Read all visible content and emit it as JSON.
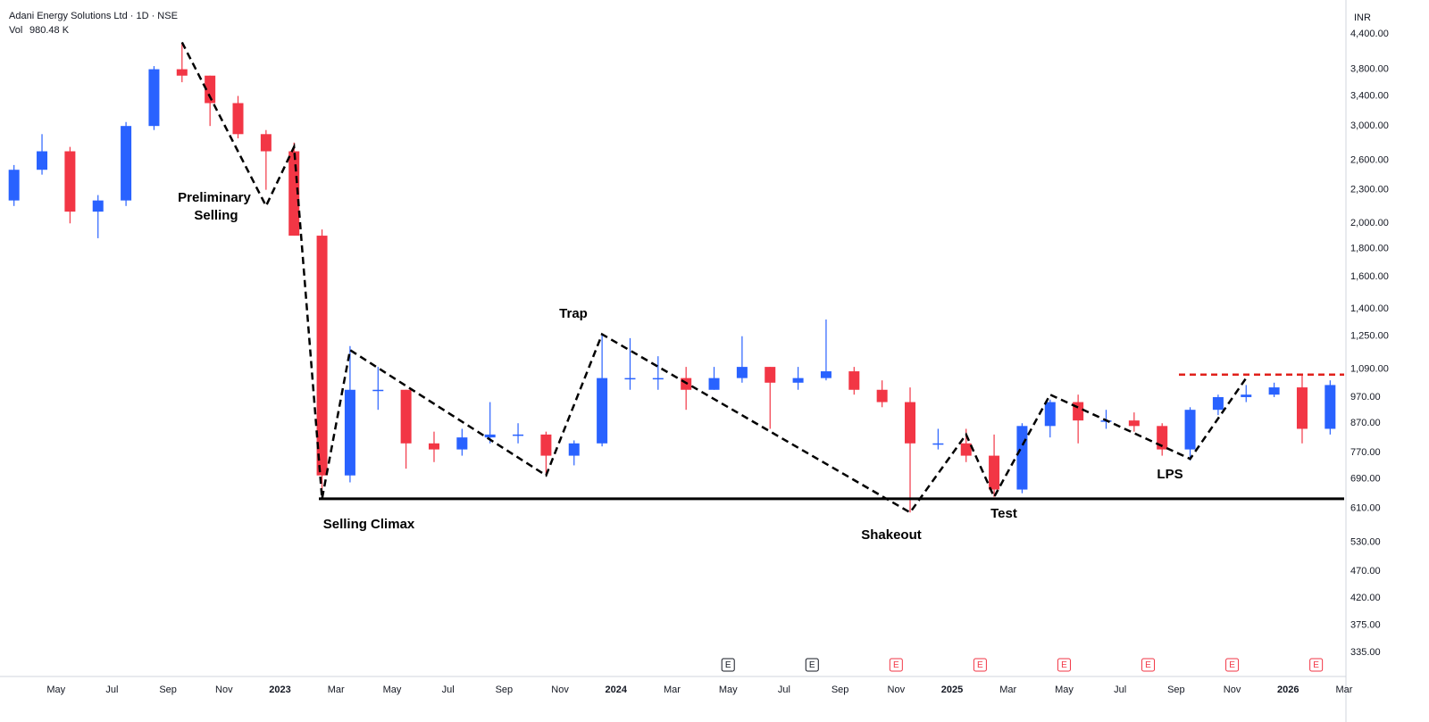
{
  "chart_data": {
    "type": "candlestick",
    "title": "Adani Energy Solutions Ltd · 1D · NSE",
    "volume_label": "Vol",
    "volume_value": "980.48 K",
    "currency": "INR",
    "log_scale": true,
    "grid": false,
    "up_color": "#2962ff",
    "down_color": "#f23645",
    "x": [
      "2022-03",
      "2022-04",
      "2022-05",
      "2022-06",
      "2022-07",
      "2022-08",
      "2022-09",
      "2022-10",
      "2022-11",
      "2022-12",
      "2023-01",
      "2023-02",
      "2023-03",
      "2023-04",
      "2023-05",
      "2023-06",
      "2023-07",
      "2023-08",
      "2023-09",
      "2023-10",
      "2023-11",
      "2023-12",
      "2024-01",
      "2024-02",
      "2024-03",
      "2024-04",
      "2024-05",
      "2024-06",
      "2024-07",
      "2024-08",
      "2024-09",
      "2024-10",
      "2024-11",
      "2024-12",
      "2025-01",
      "2025-02",
      "2025-03",
      "2025-04",
      "2025-05",
      "2025-06",
      "2025-07",
      "2025-08",
      "2025-09",
      "2025-10",
      "2025-11",
      "2025-12",
      "2026-01",
      "2026-02"
    ],
    "open": [
      2200,
      2500,
      2700,
      2100,
      2200,
      3000,
      3800,
      3700,
      3300,
      2900,
      2700,
      1900,
      700,
      1000,
      1000,
      800,
      780,
      820,
      830,
      830,
      760,
      800,
      1050,
      1050,
      1050,
      1000,
      1050,
      1100,
      1030,
      1050,
      1080,
      1000,
      950,
      800,
      800,
      760,
      660,
      860,
      950,
      880,
      880,
      860,
      780,
      920,
      970,
      980,
      1010,
      850
    ],
    "high": [
      2550,
      2900,
      2750,
      2250,
      3050,
      3850,
      4250,
      3700,
      3400,
      2950,
      2800,
      1950,
      1200,
      1100,
      1000,
      840,
      850,
      950,
      870,
      840,
      810,
      1260,
      1240,
      1150,
      1100,
      1100,
      1250,
      1100,
      1100,
      1340,
      1100,
      1040,
      1010,
      850,
      850,
      830,
      870,
      960,
      980,
      920,
      910,
      870,
      930,
      980,
      1020,
      1030,
      1065,
      1040
    ],
    "low": [
      2150,
      2450,
      2000,
      1880,
      2150,
      2950,
      3600,
      3000,
      2850,
      2300,
      1900,
      635,
      680,
      920,
      720,
      740,
      760,
      800,
      800,
      700,
      730,
      790,
      1000,
      1000,
      920,
      1000,
      1030,
      850,
      1000,
      1040,
      980,
      930,
      600,
      780,
      740,
      640,
      650,
      820,
      800,
      850,
      840,
      760,
      745,
      900,
      950,
      970,
      800,
      830
    ],
    "close": [
      2500,
      2700,
      2100,
      2200,
      3000,
      3800,
      3700,
      3300,
      2900,
      2700,
      1900,
      700,
      1000,
      1000,
      800,
      780,
      820,
      830,
      830,
      760,
      800,
      1050,
      1050,
      1050,
      1000,
      1050,
      1100,
      1030,
      1050,
      1080,
      1000,
      950,
      800,
      800,
      760,
      660,
      860,
      950,
      880,
      880,
      860,
      780,
      920,
      970,
      980,
      1010,
      850,
      1020
    ],
    "xlim": [
      "2022-03",
      "2026-03"
    ],
    "xticks": [
      {
        "value": "2022-05",
        "label": "May"
      },
      {
        "value": "2022-07",
        "label": "Jul"
      },
      {
        "value": "2022-09",
        "label": "Sep"
      },
      {
        "value": "2022-11",
        "label": "Nov"
      },
      {
        "value": "2023-01",
        "label": "2023"
      },
      {
        "value": "2023-03",
        "label": "Mar"
      },
      {
        "value": "2023-05",
        "label": "May"
      },
      {
        "value": "2023-07",
        "label": "Jul"
      },
      {
        "value": "2023-09",
        "label": "Sep"
      },
      {
        "value": "2023-11",
        "label": "Nov"
      },
      {
        "value": "2024-01",
        "label": "2024"
      },
      {
        "value": "2024-03",
        "label": "Mar"
      },
      {
        "value": "2024-05",
        "label": "May"
      },
      {
        "value": "2024-07",
        "label": "Jul"
      },
      {
        "value": "2024-09",
        "label": "Sep"
      },
      {
        "value": "2024-11",
        "label": "Nov"
      },
      {
        "value": "2025-01",
        "label": "2025"
      },
      {
        "value": "2025-03",
        "label": "Mar"
      },
      {
        "value": "2025-05",
        "label": "May"
      },
      {
        "value": "2025-07",
        "label": "Jul"
      },
      {
        "value": "2025-09",
        "label": "Sep"
      },
      {
        "value": "2025-11",
        "label": "Nov"
      },
      {
        "value": "2026-01",
        "label": "2026"
      },
      {
        "value": "2026-03",
        "label": "Mar"
      }
    ],
    "ylim": [
      303,
      5070
    ],
    "yticks": [
      {
        "value": 4400,
        "label": "4,400.00"
      },
      {
        "value": 3800,
        "label": "3,800.00"
      },
      {
        "value": 3400,
        "label": "3,400.00"
      },
      {
        "value": 3000,
        "label": "3,000.00"
      },
      {
        "value": 2600,
        "label": "2,600.00"
      },
      {
        "value": 2300,
        "label": "2,300.00"
      },
      {
        "value": 2000,
        "label": "2,000.00"
      },
      {
        "value": 1800,
        "label": "1,800.00"
      },
      {
        "value": 1600,
        "label": "1,600.00"
      },
      {
        "value": 1400,
        "label": "1,400.00"
      },
      {
        "value": 1250,
        "label": "1,250.00"
      },
      {
        "value": 1090,
        "label": "1,090.00"
      },
      {
        "value": 970,
        "label": "970.00"
      },
      {
        "value": 870,
        "label": "870.00"
      },
      {
        "value": 770,
        "label": "770.00"
      },
      {
        "value": 690,
        "label": "690.00"
      },
      {
        "value": 610,
        "label": "610.00"
      },
      {
        "value": 530,
        "label": "530.00"
      },
      {
        "value": 470,
        "label": "470.00"
      },
      {
        "value": 420,
        "label": "420.00"
      },
      {
        "value": 375,
        "label": "375.00"
      },
      {
        "value": 335,
        "label": "335.00"
      }
    ],
    "zigzag": {
      "x": [
        "2022-09",
        "2022-12",
        "2023-01",
        "2023-02",
        "2023-03",
        "2023-10",
        "2023-12",
        "2024-11",
        "2025-01",
        "2025-02",
        "2025-04",
        "2025-09",
        "2025-11"
      ],
      "values": [
        4250,
        2150,
        2750,
        635,
        1180,
        700,
        1260,
        600,
        830,
        640,
        980,
        750,
        1050
      ]
    },
    "support": 635,
    "resistance": 1065,
    "labels": [
      "Preliminary",
      "Selling",
      "Selling Climax",
      "Trap",
      "Shakeout",
      "Test",
      "LPS"
    ],
    "earnings": [
      {
        "x": "2024-05",
        "label": "E",
        "color": "#131722"
      },
      {
        "x": "2024-08",
        "label": "E",
        "color": "#131722"
      },
      {
        "x": "2024-11",
        "label": "E",
        "color": "#f23645"
      },
      {
        "x": "2025-02",
        "label": "E",
        "color": "#f23645"
      },
      {
        "x": "2025-05",
        "label": "E",
        "color": "#f23645"
      },
      {
        "x": "2025-08",
        "label": "E",
        "color": "#f23645"
      },
      {
        "x": "2025-11",
        "label": "E",
        "color": "#f23645"
      },
      {
        "x": "2026-02",
        "label": "E",
        "color": "#f23645"
      }
    ]
  }
}
